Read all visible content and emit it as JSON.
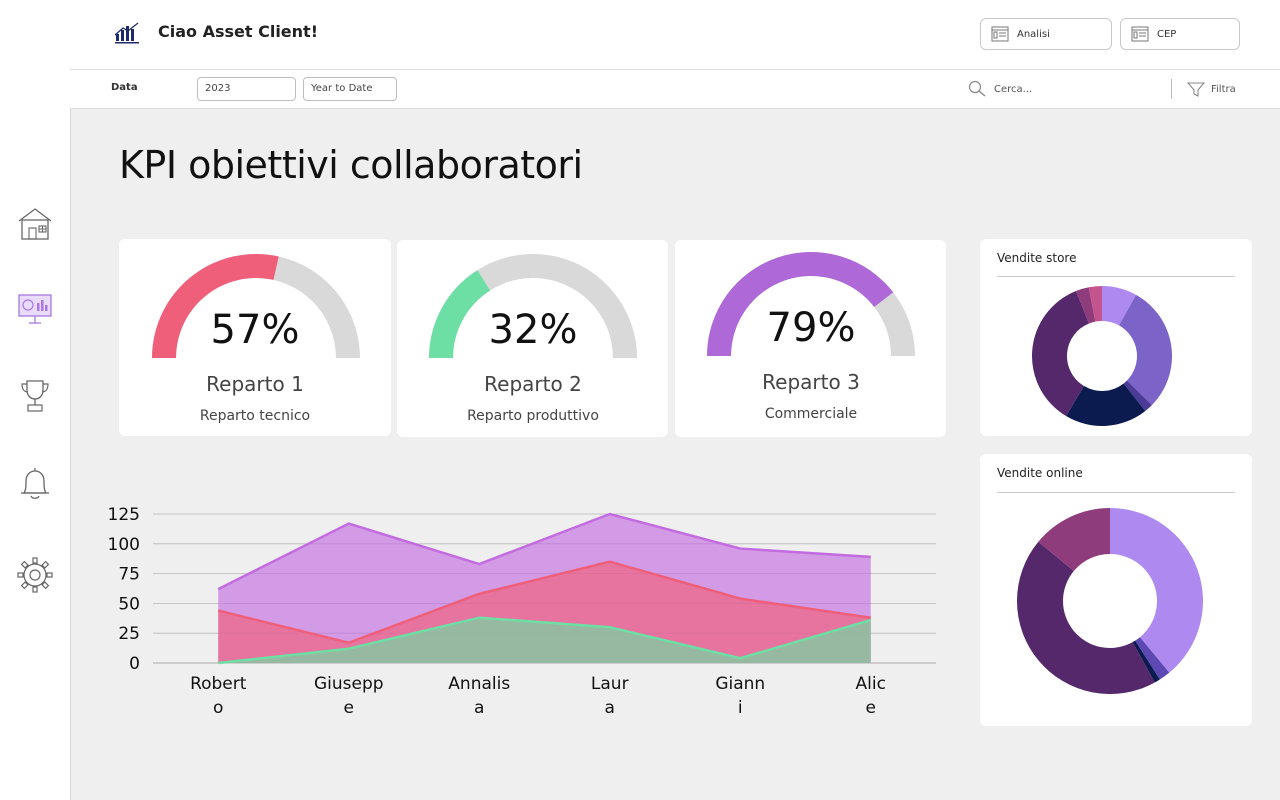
{
  "header": {
    "greeting": "Ciao Asset Client!",
    "buttons": [
      {
        "label": "Analisi"
      },
      {
        "label": "CEP"
      }
    ]
  },
  "filters": {
    "label": "Data",
    "year": "2023",
    "period": "Year to Date",
    "search_placeholder": "Cerca...",
    "filter_label": "Filtra"
  },
  "sidebar": {
    "icons": [
      "home-icon",
      "dashboard-icon",
      "trophy-icon",
      "bell-icon",
      "gear-icon"
    ]
  },
  "page": {
    "title": "KPI obiettivi collaboratori"
  },
  "kpis": [
    {
      "value": 57,
      "label": "57%",
      "name": "Reparto 1",
      "subtitle": "Reparto tecnico",
      "color": "#ef5f7a"
    },
    {
      "value": 32,
      "label": "32%",
      "name": "Reparto 2",
      "subtitle": "Reparto produttivo",
      "color": "#6ddfa4"
    },
    {
      "value": 79,
      "label": "79%",
      "name": "Reparto 3",
      "subtitle": "Commerciale",
      "color": "#ae68d8"
    }
  ],
  "colors": {
    "gauge_track": "#d9d9d9",
    "accent_purple": "#ae68d8",
    "accent_red": "#ef5f7a",
    "accent_green": "#6ddfa4"
  },
  "chart_data": [
    {
      "type": "area",
      "title": "",
      "categories": [
        "Roberto",
        "Giuseppe",
        "Annalisa",
        "Laura",
        "Gianni",
        "Alice"
      ],
      "category_lines": [
        [
          "Robert",
          "o"
        ],
        [
          "Giusepp",
          "e"
        ],
        [
          "Annalis",
          "a"
        ],
        [
          "Laur",
          "a"
        ],
        [
          "Giann",
          "i"
        ],
        [
          "Alic",
          "e"
        ]
      ],
      "ylim": [
        0,
        125
      ],
      "yticks": [
        "0",
        "25",
        "50",
        "75",
        "100",
        "125"
      ],
      "grid": true,
      "series": [
        {
          "values": [
            62,
            117,
            83,
            125,
            96,
            89
          ],
          "color": "#c36be0"
        },
        {
          "values": [
            44,
            17,
            58,
            85,
            54,
            38
          ],
          "color": "#ef5f7a"
        },
        {
          "values": [
            0,
            12,
            38,
            30,
            4,
            36
          ],
          "color": "#6ddfa4"
        }
      ]
    },
    {
      "type": "pie",
      "title": "Vendite store",
      "values": [
        8,
        29,
        2,
        19,
        35,
        3,
        3
      ],
      "colors": [
        "#ad89f0",
        "#7b63c8",
        "#4b3a96",
        "#0b1a4f",
        "#54286b",
        "#8e3c7c",
        "#c4548e"
      ]
    },
    {
      "type": "pie",
      "title": "Vendite online",
      "values": [
        39,
        2,
        1,
        44,
        14
      ],
      "colors": [
        "#ad89f0",
        "#5d49b3",
        "#0b1a4f",
        "#54286b",
        "#8e3c7c"
      ]
    }
  ]
}
